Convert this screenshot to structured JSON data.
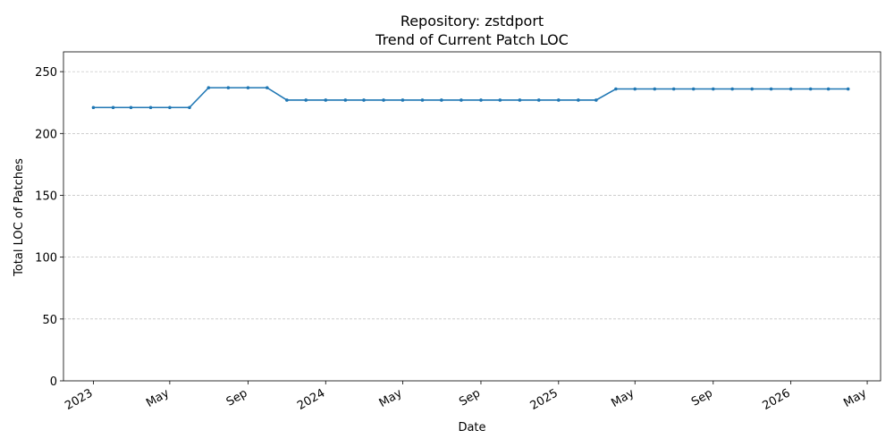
{
  "chart_data": {
    "type": "line",
    "title": "Repository: zstdport",
    "subtitle": "Trend of Current Patch LOC",
    "xlabel": "Date",
    "ylabel": "Total LOC of Patches",
    "xlim": [
      "2022-11-15",
      "2026-05-22"
    ],
    "ylim": [
      0,
      266
    ],
    "grid": "y-dashed",
    "color": "#1f77b4",
    "y_ticks": [
      0,
      50,
      100,
      150,
      200,
      250
    ],
    "x_ticks": [
      {
        "date": "2023-01-01",
        "label": "2023"
      },
      {
        "date": "2023-05-01",
        "label": "May"
      },
      {
        "date": "2023-09-01",
        "label": "Sep"
      },
      {
        "date": "2024-01-01",
        "label": "2024"
      },
      {
        "date": "2024-05-01",
        "label": "May"
      },
      {
        "date": "2024-09-01",
        "label": "Sep"
      },
      {
        "date": "2025-01-01",
        "label": "2025"
      },
      {
        "date": "2025-05-01",
        "label": "May"
      },
      {
        "date": "2025-09-01",
        "label": "Sep"
      },
      {
        "date": "2026-01-01",
        "label": "2026"
      },
      {
        "date": "2026-05-01",
        "label": "May"
      }
    ],
    "x": [
      "2023-01-01",
      "2023-02-01",
      "2023-03-01",
      "2023-04-01",
      "2023-05-01",
      "2023-06-01",
      "2023-07-01",
      "2023-08-01",
      "2023-09-01",
      "2023-10-01",
      "2023-11-01",
      "2023-12-01",
      "2024-01-01",
      "2024-02-01",
      "2024-03-01",
      "2024-04-01",
      "2024-05-01",
      "2024-06-01",
      "2024-07-01",
      "2024-08-01",
      "2024-09-01",
      "2024-10-01",
      "2024-11-01",
      "2024-12-01",
      "2025-01-01",
      "2025-02-01",
      "2025-03-01",
      "2025-04-01",
      "2025-05-01",
      "2025-06-01",
      "2025-07-01",
      "2025-08-01",
      "2025-09-01",
      "2025-10-01",
      "2025-11-01",
      "2025-12-01",
      "2026-01-01",
      "2026-02-01",
      "2026-03-01",
      "2026-04-01"
    ],
    "y": [
      221,
      221,
      221,
      221,
      221,
      221,
      237,
      237,
      237,
      237,
      227,
      227,
      227,
      227,
      227,
      227,
      227,
      227,
      227,
      227,
      227,
      227,
      227,
      227,
      227,
      227,
      227,
      236,
      236,
      236,
      236,
      236,
      236,
      236,
      236,
      236,
      236,
      236,
      236,
      236
    ]
  }
}
